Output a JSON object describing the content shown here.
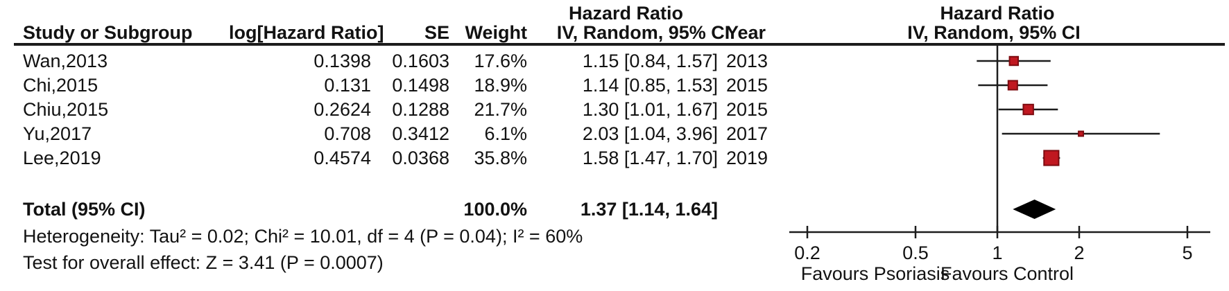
{
  "colors": {
    "text": "#121212",
    "line": "#1c1c1c",
    "marker_fill": "#c01820",
    "marker_stroke": "#7d0b10",
    "diamond_fill": "#000000"
  },
  "headers": {
    "effect_title_left": "Hazard Ratio",
    "effect_title_right": "Hazard Ratio",
    "study": "Study or Subgroup",
    "log_hr": "log[Hazard Ratio]",
    "se": "SE",
    "weight": "Weight",
    "ci_method_left": "IV, Random, 95% CI",
    "year": "Year",
    "ci_method_right": "IV, Random, 95% CI"
  },
  "chart_data": {
    "type": "forest",
    "x_scale": "log",
    "x_ticks": [
      0.2,
      0.5,
      1,
      2,
      5
    ],
    "x_tick_labels": [
      "0.2",
      "0.5",
      "1",
      "2",
      "5"
    ],
    "favours_left": "Favours Psoriasis",
    "favours_right": "Favours Control",
    "studies": [
      {
        "name": "Wan,2013",
        "log_hr": "0.1398",
        "se": "0.1603",
        "weight": "17.6%",
        "weight_pct": 17.6,
        "ci_text": "1.15 [0.84, 1.57]",
        "year": "2013",
        "hr": 1.15,
        "ci_low": 0.84,
        "ci_high": 1.57
      },
      {
        "name": "Chi,2015",
        "log_hr": "0.131",
        "se": "0.1498",
        "weight": "18.9%",
        "weight_pct": 18.9,
        "ci_text": "1.14 [0.85, 1.53]",
        "year": "2015",
        "hr": 1.14,
        "ci_low": 0.85,
        "ci_high": 1.53
      },
      {
        "name": "Chiu,2015",
        "log_hr": "0.2624",
        "se": "0.1288",
        "weight": "21.7%",
        "weight_pct": 21.7,
        "ci_text": "1.30 [1.01, 1.67]",
        "year": "2015",
        "hr": 1.3,
        "ci_low": 1.01,
        "ci_high": 1.67
      },
      {
        "name": "Yu,2017",
        "log_hr": "0.708",
        "se": "0.3412",
        "weight": "6.1%",
        "weight_pct": 6.1,
        "ci_text": "2.03 [1.04, 3.96]",
        "year": "2017",
        "hr": 2.03,
        "ci_low": 1.04,
        "ci_high": 3.96
      },
      {
        "name": "Lee,2019",
        "log_hr": "0.4574",
        "se": "0.0368",
        "weight": "35.8%",
        "weight_pct": 35.8,
        "ci_text": "1.58 [1.47, 1.70]",
        "year": "2019",
        "hr": 1.58,
        "ci_low": 1.47,
        "ci_high": 1.7
      }
    ],
    "total": {
      "label": "Total (95% CI)",
      "weight": "100.0%",
      "weight_pct": 100.0,
      "ci_text": "1.37 [1.14, 1.64]",
      "hr": 1.37,
      "ci_low": 1.14,
      "ci_high": 1.64
    }
  },
  "footer": {
    "heterogeneity": "Heterogeneity: Tau² = 0.02; Chi² = 10.01, df = 4 (P = 0.04); I² = 60%",
    "overall_effect": "Test for overall effect: Z = 3.41 (P = 0.0007)"
  }
}
